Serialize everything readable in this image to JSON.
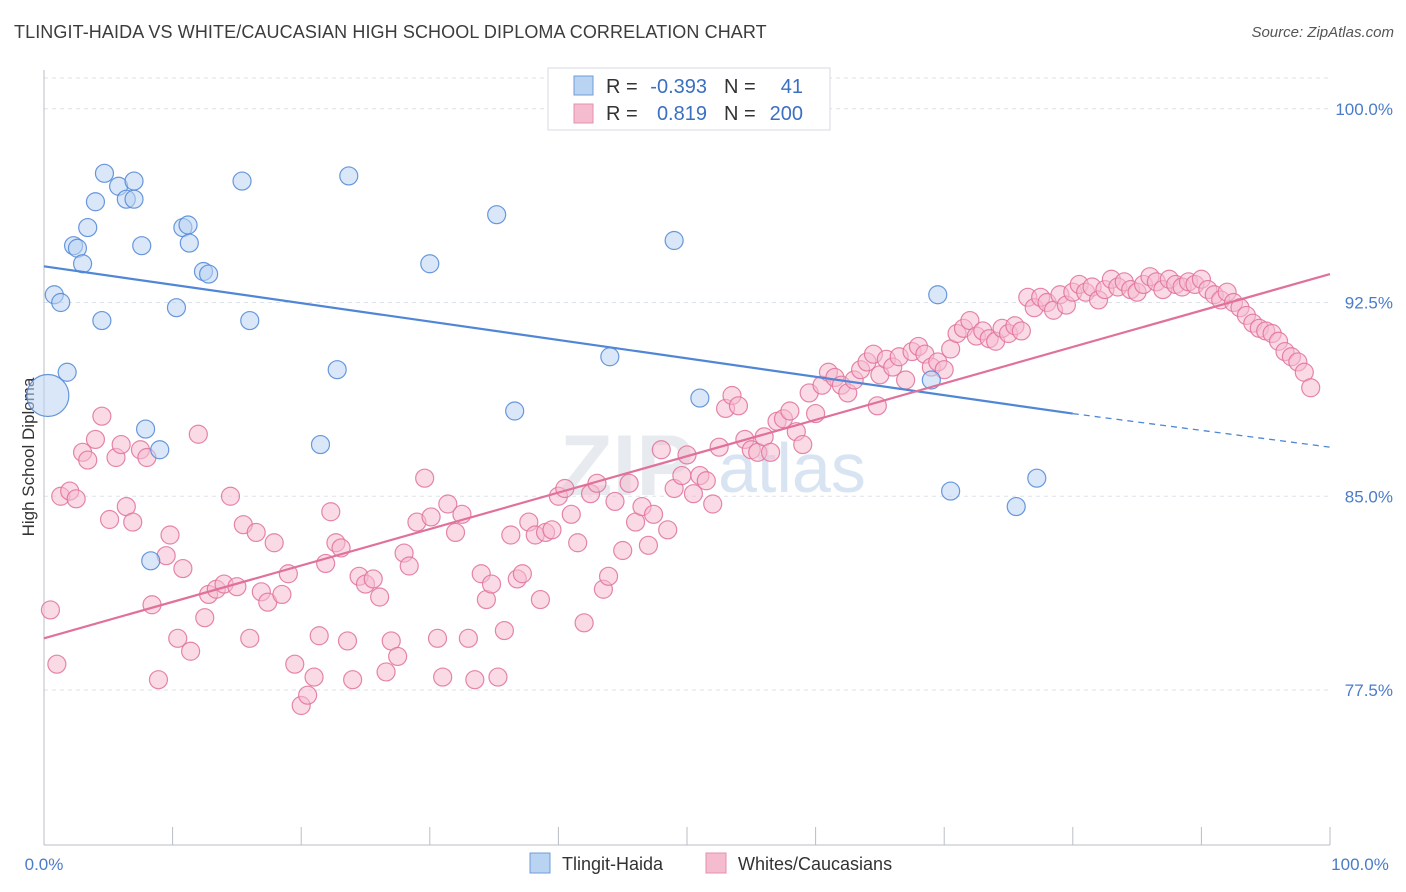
{
  "title": "TLINGIT-HAIDA VS WHITE/CAUCASIAN HIGH SCHOOL DIPLOMA CORRELATION CHART",
  "source": "Source: ZipAtlas.com",
  "watermark": {
    "zip": "ZIP",
    "atlas": "atlas"
  },
  "colors": {
    "blue": "#4f86d6",
    "blue_fill": "#b9d3f3",
    "pink": "#e0719a",
    "pink_fill": "#f5bcd0",
    "tick": "#4a7cc9",
    "grid": "#dde2e8"
  },
  "legend_stats": [
    {
      "r_label": "R =",
      "r_value": "-0.393",
      "n_label": "N =",
      "n_value": "41"
    },
    {
      "r_label": "R =",
      "r_value": "0.819",
      "n_label": "N =",
      "n_value": "200"
    }
  ],
  "chart_data": {
    "type": "scatter",
    "title": "TLINGIT-HAIDA VS WHITE/CAUCASIAN HIGH SCHOOL DIPLOMA CORRELATION CHART",
    "xlabel": "",
    "ylabel": "High School Diploma",
    "xlim": [
      0,
      100
    ],
    "ylim": [
      71.5,
      101.5
    ],
    "x_tick_labels": [
      "0.0%",
      "100.0%"
    ],
    "y_ticks": [
      77.5,
      85.0,
      92.5,
      100.0
    ],
    "y_tick_labels": [
      "77.5%",
      "85.0%",
      "92.5%",
      "100.0%"
    ],
    "grid": true,
    "legend_position": "bottom-center",
    "series": [
      {
        "name": "Tlingit-Haida",
        "color": "#4f86d6",
        "trend": {
          "x0": 0,
          "y0": 93.9,
          "x1": 80,
          "y1": 88.2,
          "dash_to": 100,
          "dash_y": 86.9
        },
        "points": [
          [
            0.3,
            88.9
          ],
          [
            0.8,
            92.8
          ],
          [
            1.3,
            92.5
          ],
          [
            1.8,
            89.8
          ],
          [
            2.3,
            94.7
          ],
          [
            2.6,
            94.6
          ],
          [
            3.0,
            94.0
          ],
          [
            3.4,
            95.4
          ],
          [
            4.0,
            96.4
          ],
          [
            4.7,
            97.5
          ],
          [
            5.8,
            97.0
          ],
          [
            6.4,
            96.5
          ],
          [
            7.0,
            96.5
          ],
          [
            7.0,
            97.2
          ],
          [
            4.5,
            91.8
          ],
          [
            7.6,
            94.7
          ],
          [
            7.9,
            87.6
          ],
          [
            8.3,
            82.5
          ],
          [
            9.0,
            86.8
          ],
          [
            10.3,
            92.3
          ],
          [
            10.8,
            95.4
          ],
          [
            11.2,
            95.5
          ],
          [
            11.3,
            94.8
          ],
          [
            12.4,
            93.7
          ],
          [
            12.8,
            93.6
          ],
          [
            15.4,
            97.2
          ],
          [
            16.0,
            91.8
          ],
          [
            21.5,
            87.0
          ],
          [
            22.8,
            89.9
          ],
          [
            23.7,
            97.4
          ],
          [
            30.0,
            94.0
          ],
          [
            35.2,
            95.9
          ],
          [
            36.6,
            88.3
          ],
          [
            44.0,
            90.4
          ],
          [
            49.0,
            94.9
          ],
          [
            51.0,
            88.8
          ],
          [
            69.0,
            89.5
          ],
          [
            69.5,
            92.8
          ],
          [
            70.5,
            85.2
          ],
          [
            75.6,
            84.6
          ],
          [
            77.2,
            85.7
          ]
        ]
      },
      {
        "name": "Whites/Caucasians",
        "color": "#e0719a",
        "trend": {
          "x0": 0,
          "y0": 79.5,
          "x1": 100,
          "y1": 93.6
        },
        "points": [
          [
            0.5,
            80.6
          ],
          [
            1.0,
            78.5
          ],
          [
            1.3,
            85.0
          ],
          [
            2.0,
            85.2
          ],
          [
            2.5,
            84.9
          ],
          [
            3.0,
            86.7
          ],
          [
            3.4,
            86.4
          ],
          [
            4.0,
            87.2
          ],
          [
            4.5,
            88.1
          ],
          [
            5.1,
            84.1
          ],
          [
            5.6,
            86.5
          ],
          [
            6.0,
            87.0
          ],
          [
            6.4,
            84.6
          ],
          [
            6.9,
            84.0
          ],
          [
            7.5,
            86.8
          ],
          [
            8.0,
            86.5
          ],
          [
            8.4,
            80.8
          ],
          [
            8.9,
            77.9
          ],
          [
            9.5,
            82.7
          ],
          [
            9.8,
            83.5
          ],
          [
            10.4,
            79.5
          ],
          [
            10.8,
            82.2
          ],
          [
            11.4,
            79.0
          ],
          [
            12.0,
            87.4
          ],
          [
            12.5,
            80.3
          ],
          [
            12.8,
            81.2
          ],
          [
            13.4,
            81.4
          ],
          [
            14.0,
            81.6
          ],
          [
            14.5,
            85.0
          ],
          [
            15.0,
            81.5
          ],
          [
            15.5,
            83.9
          ],
          [
            16.0,
            79.5
          ],
          [
            16.5,
            83.6
          ],
          [
            16.9,
            81.3
          ],
          [
            17.4,
            80.9
          ],
          [
            17.9,
            83.2
          ],
          [
            18.5,
            81.2
          ],
          [
            19.0,
            82.0
          ],
          [
            19.5,
            78.5
          ],
          [
            20.0,
            76.9
          ],
          [
            20.5,
            77.3
          ],
          [
            21.0,
            78.0
          ],
          [
            21.4,
            79.6
          ],
          [
            21.9,
            82.4
          ],
          [
            22.3,
            84.4
          ],
          [
            22.7,
            83.2
          ],
          [
            23.1,
            83.0
          ],
          [
            23.6,
            79.4
          ],
          [
            24.0,
            77.9
          ],
          [
            24.5,
            81.9
          ],
          [
            25.0,
            81.6
          ],
          [
            25.6,
            81.8
          ],
          [
            26.1,
            81.1
          ],
          [
            26.6,
            78.2
          ],
          [
            27.0,
            79.4
          ],
          [
            27.5,
            78.8
          ],
          [
            28.0,
            82.8
          ],
          [
            28.4,
            82.3
          ],
          [
            29.0,
            84.0
          ],
          [
            29.6,
            85.7
          ],
          [
            30.1,
            84.2
          ],
          [
            30.6,
            79.5
          ],
          [
            31.0,
            78.0
          ],
          [
            31.4,
            84.7
          ],
          [
            32.0,
            83.6
          ],
          [
            32.5,
            84.3
          ],
          [
            33.0,
            79.5
          ],
          [
            33.5,
            77.9
          ],
          [
            34.0,
            82.0
          ],
          [
            34.4,
            81.0
          ],
          [
            34.8,
            81.6
          ],
          [
            35.3,
            78.0
          ],
          [
            35.8,
            79.8
          ],
          [
            36.3,
            83.5
          ],
          [
            36.8,
            81.8
          ],
          [
            37.2,
            82.0
          ],
          [
            37.7,
            84.0
          ],
          [
            38.2,
            83.5
          ],
          [
            38.6,
            81.0
          ],
          [
            39.0,
            83.6
          ],
          [
            39.5,
            83.7
          ],
          [
            40.0,
            85.0
          ],
          [
            40.5,
            85.3
          ],
          [
            41.0,
            84.3
          ],
          [
            41.5,
            83.2
          ],
          [
            42.0,
            80.1
          ],
          [
            42.5,
            85.1
          ],
          [
            43.0,
            85.5
          ],
          [
            43.5,
            81.4
          ],
          [
            43.9,
            81.9
          ],
          [
            44.4,
            84.8
          ],
          [
            45.0,
            82.9
          ],
          [
            45.5,
            85.5
          ],
          [
            46.0,
            84.0
          ],
          [
            46.5,
            84.6
          ],
          [
            47.0,
            83.1
          ],
          [
            47.4,
            84.3
          ],
          [
            48.0,
            86.8
          ],
          [
            48.5,
            83.7
          ],
          [
            49.0,
            85.3
          ],
          [
            49.6,
            85.8
          ],
          [
            50.0,
            86.6
          ],
          [
            50.5,
            85.1
          ],
          [
            51.0,
            85.8
          ],
          [
            51.5,
            85.6
          ],
          [
            52.0,
            84.7
          ],
          [
            52.5,
            86.9
          ],
          [
            53.0,
            88.4
          ],
          [
            53.5,
            88.9
          ],
          [
            54.0,
            88.5
          ],
          [
            54.5,
            87.2
          ],
          [
            55.0,
            86.8
          ],
          [
            55.5,
            86.7
          ],
          [
            56.0,
            87.3
          ],
          [
            56.5,
            86.7
          ],
          [
            57.0,
            87.9
          ],
          [
            57.5,
            88.0
          ],
          [
            58.0,
            88.3
          ],
          [
            58.5,
            87.5
          ],
          [
            59.0,
            87.0
          ],
          [
            59.5,
            89.0
          ],
          [
            60.0,
            88.2
          ],
          [
            60.5,
            89.3
          ],
          [
            61.0,
            89.8
          ],
          [
            61.5,
            89.6
          ],
          [
            62.0,
            89.3
          ],
          [
            62.5,
            89.0
          ],
          [
            63.0,
            89.5
          ],
          [
            63.5,
            89.9
          ],
          [
            64.0,
            90.2
          ],
          [
            64.5,
            90.5
          ],
          [
            65.0,
            89.7
          ],
          [
            65.5,
            90.3
          ],
          [
            66.0,
            90.0
          ],
          [
            66.5,
            90.4
          ],
          [
            67.0,
            89.5
          ],
          [
            67.5,
            90.6
          ],
          [
            68.0,
            90.8
          ],
          [
            68.5,
            90.5
          ],
          [
            69.0,
            90.0
          ],
          [
            69.5,
            90.2
          ],
          [
            70.0,
            89.9
          ],
          [
            70.5,
            90.7
          ],
          [
            71.0,
            91.3
          ],
          [
            71.5,
            91.5
          ],
          [
            72.0,
            91.8
          ],
          [
            72.5,
            91.2
          ],
          [
            73.0,
            91.4
          ],
          [
            73.5,
            91.1
          ],
          [
            74.0,
            91.0
          ],
          [
            74.5,
            91.5
          ],
          [
            75.0,
            91.3
          ],
          [
            75.5,
            91.6
          ],
          [
            76.0,
            91.4
          ],
          [
            76.5,
            92.7
          ],
          [
            77.0,
            92.3
          ],
          [
            77.5,
            92.7
          ],
          [
            78.0,
            92.5
          ],
          [
            78.5,
            92.2
          ],
          [
            79.0,
            92.8
          ],
          [
            79.5,
            92.4
          ],
          [
            80.0,
            92.9
          ],
          [
            80.5,
            93.2
          ],
          [
            81.0,
            92.9
          ],
          [
            81.5,
            93.1
          ],
          [
            82.0,
            92.6
          ],
          [
            82.5,
            93.0
          ],
          [
            83.0,
            93.4
          ],
          [
            83.5,
            93.1
          ],
          [
            84.0,
            93.3
          ],
          [
            84.5,
            93.0
          ],
          [
            85.0,
            92.9
          ],
          [
            85.5,
            93.2
          ],
          [
            86.0,
            93.5
          ],
          [
            86.5,
            93.3
          ],
          [
            87.0,
            93.0
          ],
          [
            87.5,
            93.4
          ],
          [
            88.0,
            93.2
          ],
          [
            88.5,
            93.1
          ],
          [
            89.0,
            93.3
          ],
          [
            89.5,
            93.2
          ],
          [
            90.0,
            93.4
          ],
          [
            90.5,
            93.0
          ],
          [
            91.0,
            92.8
          ],
          [
            91.5,
            92.6
          ],
          [
            92.0,
            92.9
          ],
          [
            92.5,
            92.5
          ],
          [
            93.0,
            92.3
          ],
          [
            93.5,
            92.0
          ],
          [
            94.0,
            91.7
          ],
          [
            94.5,
            91.5
          ],
          [
            95.0,
            91.4
          ],
          [
            95.5,
            91.3
          ],
          [
            96.0,
            91.0
          ],
          [
            96.5,
            90.6
          ],
          [
            97.0,
            90.4
          ],
          [
            97.5,
            90.2
          ],
          [
            98.0,
            89.8
          ],
          [
            98.5,
            89.2
          ],
          [
            64.8,
            88.5
          ]
        ]
      }
    ]
  }
}
